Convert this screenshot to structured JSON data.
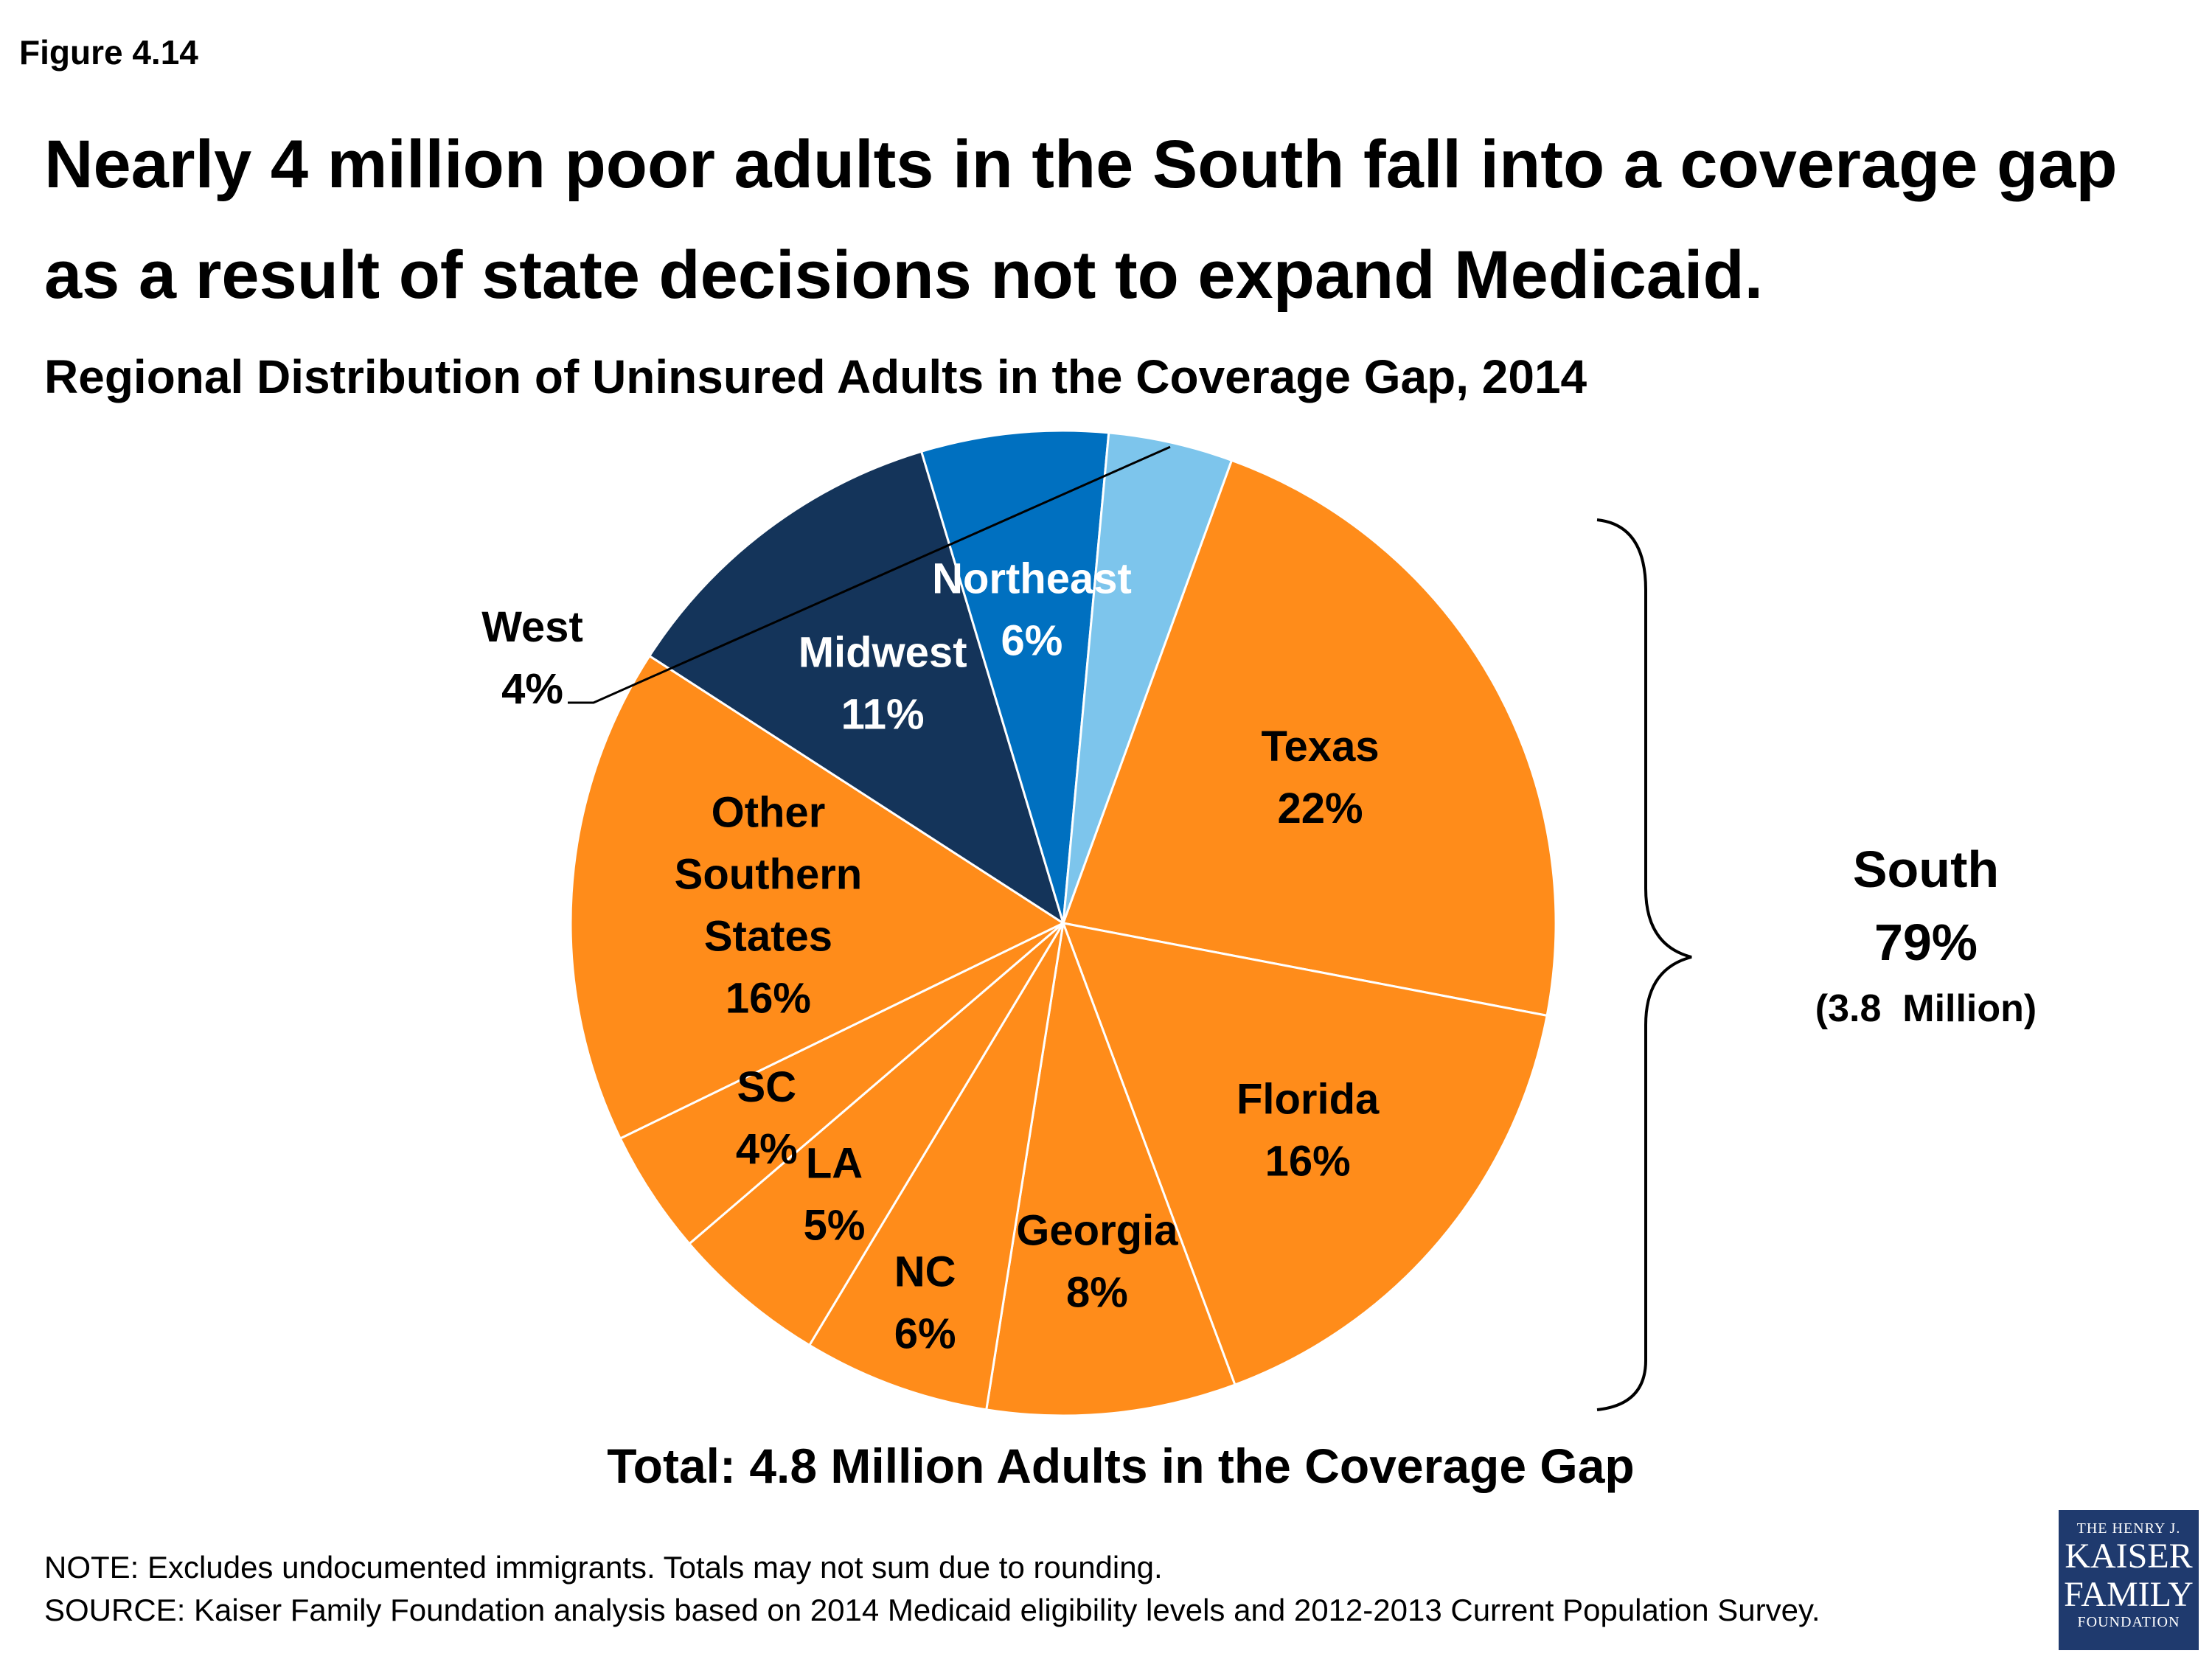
{
  "figure_label": "Figure 4.14",
  "headline": "Nearly 4 million poor adults in the South fall into a coverage gap as a result of state decisions not to expand Medicaid.",
  "chart_data": {
    "type": "pie",
    "title": "Regional Distribution of Uninsured Adults in the Coverage Gap, 2014",
    "slices": [
      {
        "label": "Texas",
        "value": 22,
        "value_label": "22%",
        "color": "#FF8C1A",
        "label_color": "#000000"
      },
      {
        "label": "Florida",
        "value": 16,
        "value_label": "16%",
        "color": "#FF8C1A",
        "label_color": "#000000"
      },
      {
        "label": "Georgia",
        "value": 8,
        "value_label": "8%",
        "color": "#FF8C1A",
        "label_color": "#000000"
      },
      {
        "label": "NC",
        "value": 6,
        "value_label": "6%",
        "color": "#FF8C1A",
        "label_color": "#000000"
      },
      {
        "label": "LA",
        "value": 5,
        "value_label": "5%",
        "color": "#FF8C1A",
        "label_color": "#000000"
      },
      {
        "label": "SC",
        "value": 4,
        "value_label": "4%",
        "color": "#FF8C1A",
        "label_color": "#000000"
      },
      {
        "label": "Other Southern States",
        "value": 16,
        "value_label": "16%",
        "color": "#FF8C1A",
        "label_color": "#000000"
      },
      {
        "label": "Midwest",
        "value": 11,
        "value_label": "11%",
        "color": "#14345A",
        "label_color": "#FFFFFF"
      },
      {
        "label": "Northeast",
        "value": 6,
        "value_label": "6%",
        "color": "#0070C0",
        "label_color": "#FFFFFF"
      },
      {
        "label": "West",
        "value": 4,
        "value_label": "4%",
        "color": "#7DC5EC",
        "label_color": "#000000"
      }
    ],
    "bracket_annotation": {
      "label": "South",
      "value": "79%",
      "detail": "(3.8  Million)"
    },
    "total": "Total: 4.8 Million Adults in the Coverage Gap"
  },
  "note": "NOTE: Excludes undocumented immigrants. Totals may not sum due to rounding.",
  "source": "SOURCE: Kaiser Family Foundation analysis based on 2014 Medicaid eligibility levels and 2012-2013 Current Population Survey.",
  "logo": {
    "line1": "THE HENRY J.",
    "line2": "KAISER",
    "line3": "FAMILY",
    "line4": "FOUNDATION"
  }
}
